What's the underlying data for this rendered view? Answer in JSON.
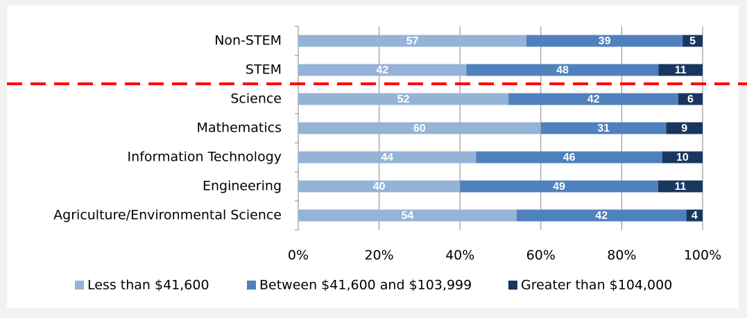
{
  "chart_data": {
    "type": "bar",
    "orientation": "horizontal",
    "stacking": "percent",
    "categories": [
      "Non-STEM",
      "STEM",
      "Science",
      "Mathematics",
      "Information Technology",
      "Engineering",
      "Agriculture/Environmental Science"
    ],
    "series": [
      {
        "name": "Less than $41,600",
        "color": "#95b3d7",
        "values": [
          57,
          42,
          52,
          60,
          44,
          40,
          54
        ]
      },
      {
        "name": "Between $41,600 and $103,999",
        "color": "#4f81bd",
        "values": [
          39,
          48,
          42,
          31,
          46,
          49,
          42
        ]
      },
      {
        "name": "Greater than $104,000",
        "color": "#17375e",
        "values": [
          5,
          11,
          6,
          9,
          10,
          11,
          4
        ]
      }
    ],
    "xlim": [
      0,
      100
    ],
    "xticks": [
      {
        "value": 0,
        "label": "0%"
      },
      {
        "value": 20,
        "label": "20%"
      },
      {
        "value": 40,
        "label": "40%"
      },
      {
        "value": 60,
        "label": "60%"
      },
      {
        "value": 80,
        "label": "80%"
      },
      {
        "value": 100,
        "label": "100%"
      }
    ],
    "grid": true,
    "legend": "bottom"
  }
}
